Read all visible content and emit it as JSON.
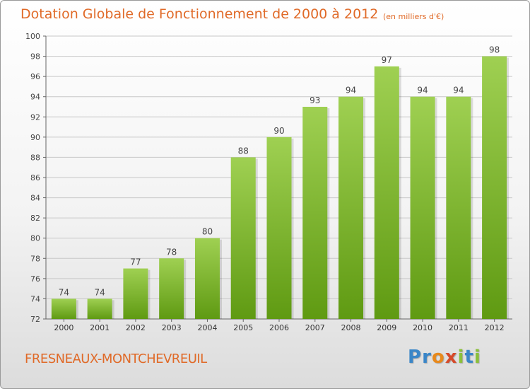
{
  "chart": {
    "title": "Dotation Globale de Fonctionnement de 2000 à 2012",
    "unit": "(en milliers d'€)",
    "location": "FRESNEAUX-MONTCHEVREUIL"
  },
  "logo": {
    "text": "Proxiti",
    "letters": [
      "P",
      "r",
      "o",
      "x",
      "i",
      "t",
      "i"
    ],
    "colors": [
      "#3a86c8",
      "#3a86c8",
      "#e8891c",
      "#d64a2a",
      "#8bc03a",
      "#3a86c8",
      "#8bc03a"
    ]
  },
  "colors": {
    "title": "#e06a28",
    "bar_top": "#9fd052",
    "bar_bottom": "#5f9a12",
    "grid": "#c8c8c8"
  },
  "chart_data": {
    "type": "bar",
    "title": "Dotation Globale de Fonctionnement de 2000 à 2012",
    "subtitle": "(en milliers d'€)",
    "xlabel": "",
    "ylabel": "",
    "categories": [
      "2000",
      "2001",
      "2002",
      "2003",
      "2004",
      "2005",
      "2006",
      "2007",
      "2008",
      "2009",
      "2010",
      "2011",
      "2012"
    ],
    "values": [
      74,
      74,
      77,
      78,
      80,
      88,
      90,
      93,
      94,
      97,
      94,
      94,
      98
    ],
    "ylim": [
      72,
      100
    ],
    "yticks": [
      72,
      74,
      76,
      78,
      80,
      82,
      84,
      86,
      88,
      90,
      92,
      94,
      96,
      98,
      100
    ],
    "grid": true,
    "data_labels": true
  }
}
